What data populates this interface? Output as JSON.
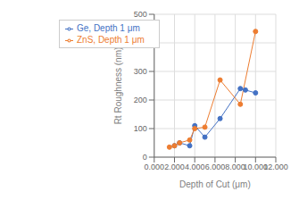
{
  "chart_data": {
    "type": "line",
    "xlabel": "Depth of Cut (μm)",
    "ylabel": "Rt Roughness (nm)",
    "series": [
      {
        "name": "Ge, Depth 1 μm",
        "color": "#4472C4",
        "marker": "circle",
        "x": [
          2.0,
          2.5,
          3.5,
          4.0,
          5.0,
          6.5,
          8.5,
          9.0,
          10.0
        ],
        "values": [
          40,
          50,
          40,
          110,
          70,
          135,
          240,
          235,
          225
        ]
      },
      {
        "name": "ZnS, Depth 1 μm",
        "color": "#ED7D31",
        "marker": "circle",
        "x": [
          1.5,
          2.0,
          2.5,
          3.5,
          4.0,
          5.0,
          6.5,
          8.5,
          10.0
        ],
        "values": [
          35,
          40,
          50,
          60,
          100,
          105,
          270,
          185,
          440
        ]
      }
    ],
    "xlim": [
      0,
      12
    ],
    "ylim": [
      0,
      500
    ],
    "xticks": [
      {
        "value": 0,
        "label": "0.000"
      },
      {
        "value": 2,
        "label": "2.000"
      },
      {
        "value": 4,
        "label": "4.000"
      },
      {
        "value": 6,
        "label": "6.000"
      },
      {
        "value": 8,
        "label": "8.000"
      },
      {
        "value": 10,
        "label": "10.000"
      },
      {
        "value": 12,
        "label": "12.000"
      }
    ],
    "yticks": [
      0,
      100,
      200,
      300,
      400,
      500
    ],
    "grid": true,
    "legend": "upper left"
  }
}
